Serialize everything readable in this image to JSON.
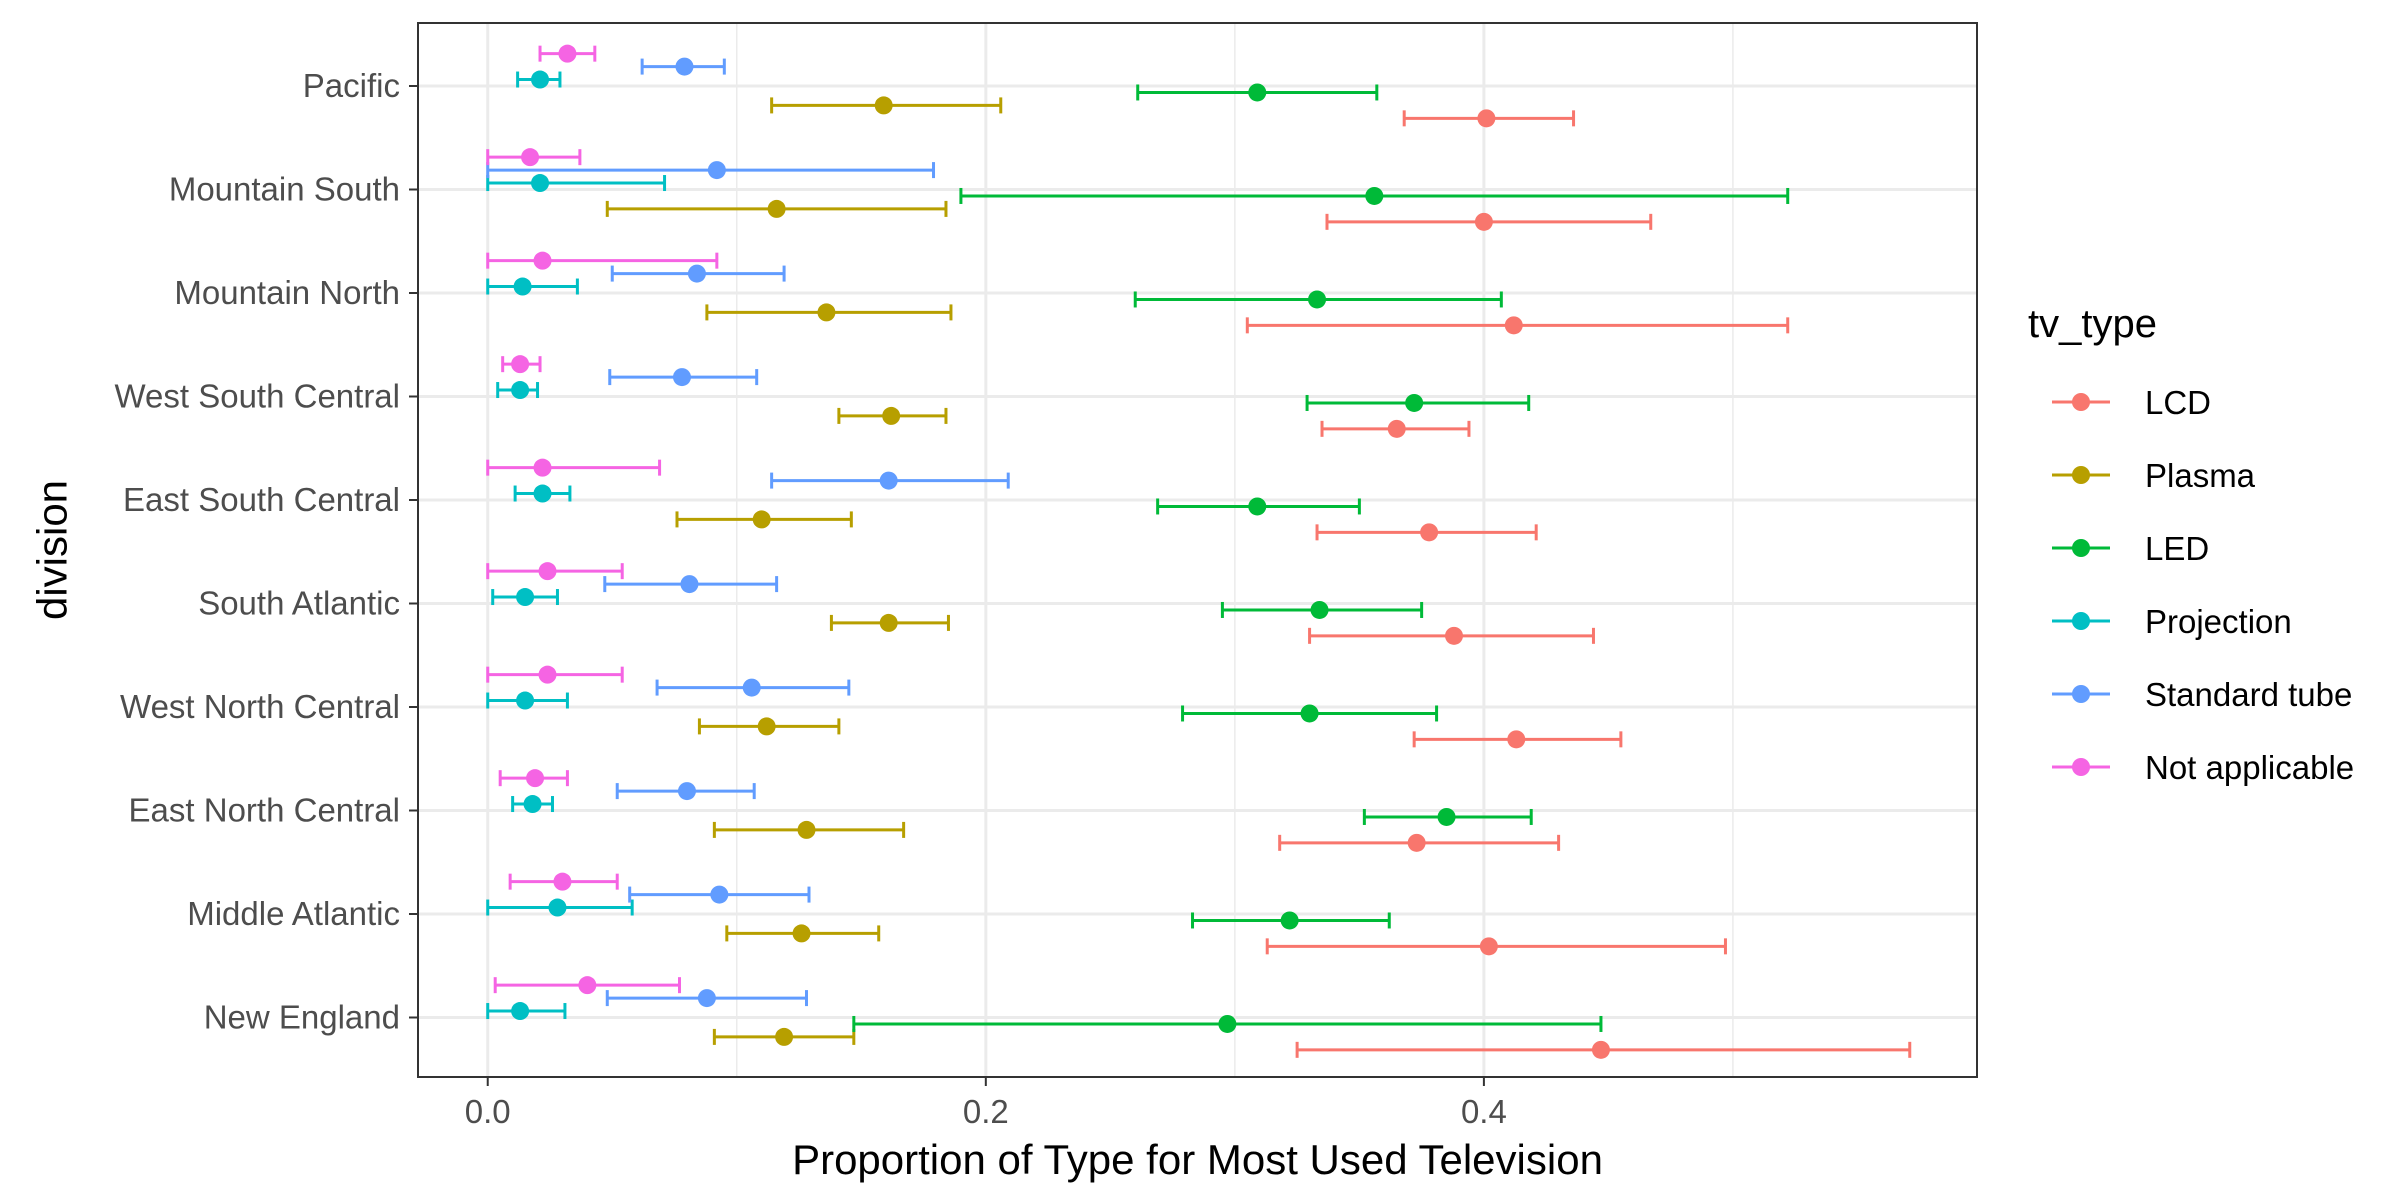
{
  "chart_data": {
    "type": "scatter",
    "subtype": "dot-with-horizontal-error-bars",
    "xlabel": "Proportion of Type for Most Used Television",
    "ylabel": "division",
    "xlim": [
      -0.028,
      0.598
    ],
    "x_ticks": [
      0.0,
      0.2,
      0.4
    ],
    "x_tick_labels": [
      "0.0",
      "0.2",
      "0.4"
    ],
    "grid": true,
    "legend_position": "right",
    "legend_title": "tv_type",
    "categories": [
      "Pacific",
      "Mountain South",
      "Mountain North",
      "West South Central",
      "East South Central",
      "South Atlantic",
      "West North Central",
      "East North Central",
      "Middle Atlantic",
      "New England"
    ],
    "series": [
      {
        "name": "LCD",
        "color": "#F8766D",
        "values": [
          0.401,
          0.4,
          0.412,
          0.365,
          0.378,
          0.388,
          0.413,
          0.373,
          0.402,
          0.447
        ],
        "lower": [
          0.368,
          0.337,
          0.305,
          0.335,
          0.333,
          0.33,
          0.372,
          0.318,
          0.313,
          0.325
        ],
        "upper": [
          0.436,
          0.467,
          0.522,
          0.394,
          0.421,
          0.444,
          0.455,
          0.43,
          0.497,
          0.571
        ]
      },
      {
        "name": "Plasma",
        "color": "#B79F00",
        "values": [
          0.159,
          0.116,
          0.136,
          0.162,
          0.11,
          0.161,
          0.112,
          0.128,
          0.126,
          0.119
        ],
        "lower": [
          0.114,
          0.048,
          0.088,
          0.141,
          0.076,
          0.138,
          0.085,
          0.091,
          0.096,
          0.091
        ],
        "upper": [
          0.206,
          0.184,
          0.186,
          0.184,
          0.146,
          0.185,
          0.141,
          0.167,
          0.157,
          0.147
        ]
      },
      {
        "name": "LED",
        "color": "#00BA38",
        "values": [
          0.309,
          0.356,
          0.333,
          0.372,
          0.309,
          0.334,
          0.33,
          0.385,
          0.322,
          0.297
        ],
        "lower": [
          0.261,
          0.19,
          0.26,
          0.329,
          0.269,
          0.295,
          0.279,
          0.352,
          0.283,
          0.147
        ],
        "upper": [
          0.357,
          0.522,
          0.407,
          0.418,
          0.35,
          0.375,
          0.381,
          0.419,
          0.362,
          0.447
        ]
      },
      {
        "name": "Projection",
        "color": "#00BFC4",
        "values": [
          0.021,
          0.021,
          0.014,
          0.013,
          0.022,
          0.015,
          0.015,
          0.018,
          0.028,
          0.013
        ],
        "lower": [
          0.012,
          0.0,
          0.0,
          0.004,
          0.011,
          0.002,
          0.0,
          0.01,
          0.0,
          0.0
        ],
        "upper": [
          0.029,
          0.071,
          0.036,
          0.02,
          0.033,
          0.028,
          0.032,
          0.026,
          0.058,
          0.031
        ]
      },
      {
        "name": "Standard tube",
        "color": "#619CFF",
        "values": [
          0.079,
          0.092,
          0.084,
          0.078,
          0.161,
          0.081,
          0.106,
          0.08,
          0.093,
          0.088
        ],
        "lower": [
          0.062,
          0.0,
          0.05,
          0.049,
          0.114,
          0.047,
          0.068,
          0.052,
          0.057,
          0.048
        ],
        "upper": [
          0.095,
          0.179,
          0.119,
          0.108,
          0.209,
          0.116,
          0.145,
          0.107,
          0.129,
          0.128
        ]
      },
      {
        "name": "Not applicable",
        "color": "#F564E3",
        "values": [
          0.032,
          0.017,
          0.022,
          0.013,
          0.022,
          0.024,
          0.024,
          0.019,
          0.03,
          0.04
        ],
        "lower": [
          0.021,
          0.0,
          0.0,
          0.006,
          0.0,
          0.0,
          0.0,
          0.005,
          0.009,
          0.003
        ],
        "upper": [
          0.043,
          0.037,
          0.092,
          0.021,
          0.069,
          0.054,
          0.054,
          0.032,
          0.052,
          0.077
        ]
      }
    ]
  }
}
